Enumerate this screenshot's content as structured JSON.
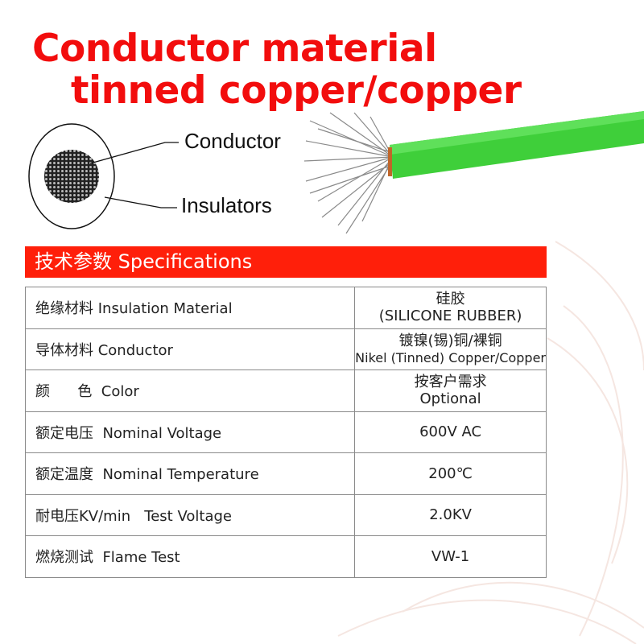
{
  "title": {
    "line1": "Conductor material",
    "line2": "tinned copper/copper"
  },
  "diagram": {
    "conductor_label": "Conductor",
    "insulator_label": "Insulators"
  },
  "colors": {
    "title_red": "#f20d0d",
    "header_red": "#ff1f0a",
    "wire_green": "#3fcf3a"
  },
  "specs": {
    "header": "技术参数 Specifications",
    "rows": [
      {
        "label": "绝缘材料 Insulation Material",
        "value1": "硅胶",
        "value2": "(SILICONE RUBBER)"
      },
      {
        "label": "导体材料 Conductor",
        "value1": "镀镍(锡)铜/裸铜",
        "value2": "Nikel (Tinned) Copper/Copper"
      },
      {
        "label": "颜      色  Color",
        "value1": "按客户需求",
        "value2": "Optional"
      },
      {
        "label": "额定电压  Nominal Voltage",
        "value1": "600V AC",
        "value2": ""
      },
      {
        "label": "额定温度  Nominal Temperature",
        "value1": "200℃",
        "value2": ""
      },
      {
        "label": "耐电压KV/min   Test Voltage",
        "value1": "2.0KV",
        "value2": ""
      },
      {
        "label": "燃烧测试  Flame Test",
        "value1": "VW-1",
        "value2": ""
      }
    ]
  }
}
